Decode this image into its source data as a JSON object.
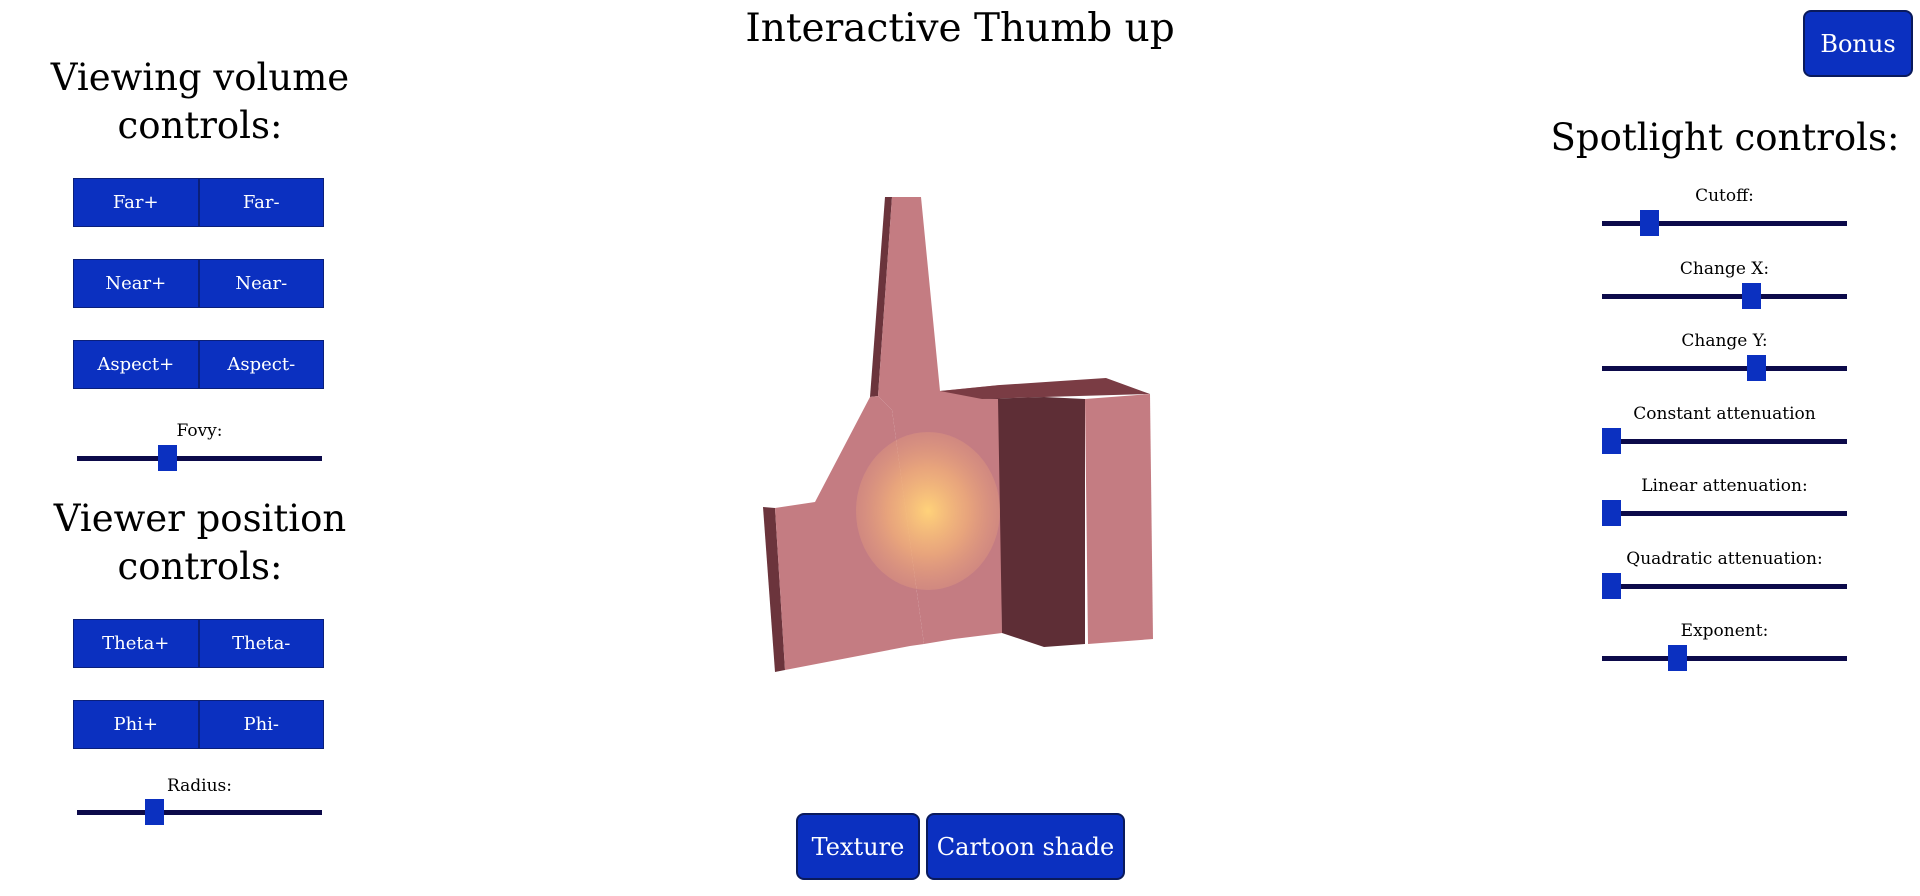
{
  "title": "Interactive Thumb up",
  "bonus_label": "Bonus",
  "viewing_volume": {
    "heading": "Viewing volume controls:",
    "far_plus": "Far+",
    "far_minus": "Far-",
    "near_plus": "Near+",
    "near_minus": "Near-",
    "aspect_plus": "Aspect+",
    "aspect_minus": "Aspect-",
    "fovy_label": "Fovy:",
    "fovy_value": 0.36
  },
  "viewer_position": {
    "heading": "Viewer position controls:",
    "theta_plus": "Theta+",
    "theta_minus": "Theta-",
    "phi_plus": "Phi+",
    "phi_minus": "Phi-",
    "radius_label": "Radius:",
    "radius_value": 0.3
  },
  "spotlight": {
    "heading": "Spotlight controls:",
    "sliders": [
      {
        "label": "Cutoff:",
        "value": 0.17
      },
      {
        "label": "Change X:",
        "value": 0.62
      },
      {
        "label": "Change Y:",
        "value": 0.64
      },
      {
        "label": "Constant attenuation",
        "value": 0.0
      },
      {
        "label": "Linear attenuation:",
        "value": 0.0
      },
      {
        "label": "Quadratic attenuation:",
        "value": 0.0
      },
      {
        "label": "Exponent:",
        "value": 0.29
      }
    ]
  },
  "bottom_buttons": {
    "texture": "Texture",
    "cartoon": "Cartoon shade"
  },
  "colors": {
    "button_blue": "#0b30c0",
    "slider_track": "#0c0a4a",
    "model_front": "#c47c82",
    "model_side": "#6b343c",
    "spot_glow": "#ffd27a"
  }
}
